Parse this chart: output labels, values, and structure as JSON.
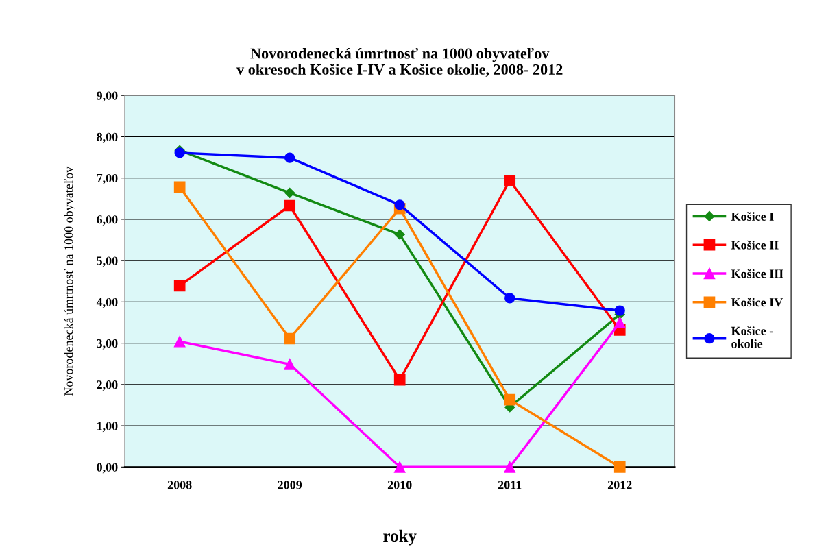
{
  "chart_data": {
    "type": "line",
    "title": "Novorodenecká úmrtnosť na 1000 obyvateľov\nv okresoch Košice I-IV a Košice okolie, 2008- 2012",
    "xlabel": "roky",
    "ylabel": "Novorodenecká úmrtnosť na 1000 obyvateľov",
    "categories": [
      "2008",
      "2009",
      "2010",
      "2011",
      "2012"
    ],
    "series": [
      {
        "name": "Košice I",
        "color": "#138a13",
        "marker": "diamond",
        "values": [
          7.67,
          6.64,
          5.63,
          1.45,
          3.7
        ]
      },
      {
        "name": "Košice II",
        "color": "#ff0000",
        "marker": "square",
        "values": [
          4.39,
          6.33,
          2.11,
          6.94,
          3.32
        ]
      },
      {
        "name": "Košice III",
        "color": "#ff00ff",
        "marker": "triangle",
        "values": [
          3.04,
          2.49,
          0.0,
          0.0,
          3.5
        ]
      },
      {
        "name": "Košice IV",
        "color": "#ff7f00",
        "marker": "square",
        "values": [
          6.78,
          3.11,
          6.26,
          1.63,
          0.0
        ]
      },
      {
        "name": "Košice -\nokolie",
        "color": "#0000ff",
        "marker": "circle",
        "values": [
          7.61,
          7.49,
          6.35,
          4.09,
          3.79
        ]
      }
    ],
    "ylim": [
      0,
      9
    ],
    "yticks": [
      {
        "value": 0,
        "label": "0,00"
      },
      {
        "value": 1,
        "label": "1,00"
      },
      {
        "value": 2,
        "label": "2,00"
      },
      {
        "value": 3,
        "label": "3,00"
      },
      {
        "value": 4,
        "label": "4,00"
      },
      {
        "value": 5,
        "label": "5,00"
      },
      {
        "value": 6,
        "label": "6,00"
      },
      {
        "value": 7,
        "label": "7,00"
      },
      {
        "value": 8,
        "label": "8,00"
      },
      {
        "value": 9,
        "label": "9,00"
      }
    ],
    "grid": "y",
    "legend": "right",
    "line_style": "solid"
  }
}
